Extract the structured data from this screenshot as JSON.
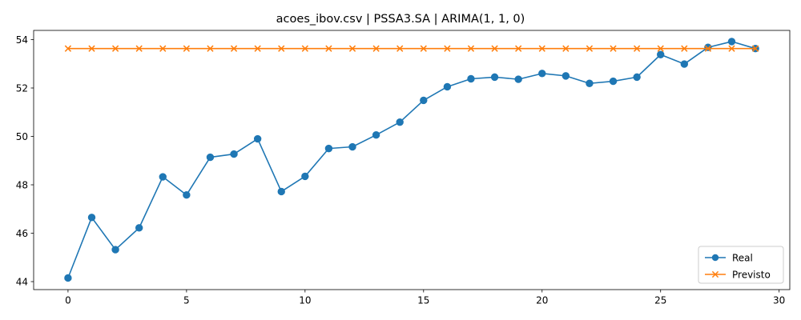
{
  "chart_data": {
    "type": "line",
    "title": "acoes_ibov.csv | PSSA3.SA | ARIMA(1, 1, 0)",
    "xlabel": "",
    "ylabel": "",
    "x": [
      0,
      1,
      2,
      3,
      4,
      5,
      6,
      7,
      8,
      9,
      10,
      11,
      12,
      13,
      14,
      15,
      16,
      17,
      18,
      19,
      20,
      21,
      22,
      23,
      24,
      25,
      26,
      27,
      28,
      29
    ],
    "xlim": [
      -1.45,
      30.45
    ],
    "ylim": [
      43.67,
      54.38
    ],
    "xticks": [
      0,
      5,
      10,
      15,
      20,
      25,
      30
    ],
    "yticks": [
      44,
      46,
      48,
      50,
      52,
      54
    ],
    "grid": false,
    "legend_position": "lower-right",
    "series": [
      {
        "name": "Real",
        "color": "#1f77b4",
        "marker": "circle",
        "values": [
          44.15,
          46.65,
          45.32,
          46.22,
          48.33,
          47.58,
          49.14,
          49.27,
          49.9,
          47.72,
          48.35,
          49.5,
          49.57,
          50.06,
          50.59,
          51.49,
          52.05,
          52.38,
          52.45,
          52.36,
          52.6,
          52.5,
          52.19,
          52.28,
          52.45,
          53.38,
          52.99,
          53.68,
          53.92,
          53.63
        ]
      },
      {
        "name": "Previsto",
        "color": "#ff7f0e",
        "marker": "x",
        "values": [
          53.63,
          53.63,
          53.63,
          53.63,
          53.63,
          53.63,
          53.63,
          53.63,
          53.63,
          53.63,
          53.63,
          53.63,
          53.63,
          53.63,
          53.63,
          53.63,
          53.63,
          53.63,
          53.63,
          53.63,
          53.63,
          53.63,
          53.63,
          53.63,
          53.63,
          53.63,
          53.63,
          53.63,
          53.63,
          53.63
        ]
      }
    ]
  }
}
